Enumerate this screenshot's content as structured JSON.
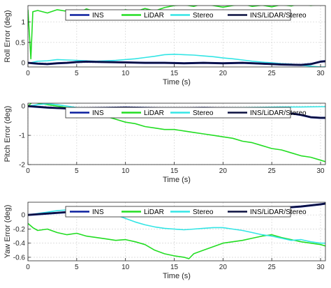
{
  "chart_data": [
    {
      "type": "line",
      "xlabel": "Time (s)",
      "ylabel": "Roll Error (deg)",
      "xlim": [
        0,
        30.5
      ],
      "ylim": [
        -0.1,
        1.4
      ],
      "xticks": [
        "0",
        "5",
        "10",
        "15",
        "20",
        "25",
        "30"
      ],
      "yticks": [
        "0",
        "0.5",
        "1"
      ],
      "grid": true,
      "legend": "top, horizontal",
      "series": [
        {
          "name": "INS",
          "color": "#0a1e9e",
          "x": [
            0,
            1,
            2,
            3,
            4,
            5,
            6,
            8,
            10,
            12,
            14,
            16,
            18,
            20,
            22,
            24,
            26,
            28,
            29,
            30,
            30.5
          ],
          "y": [
            0,
            -0.02,
            -0.03,
            -0.01,
            0,
            0.02,
            0.03,
            0.02,
            0.01,
            0,
            0,
            -0.01,
            0,
            -0.01,
            0,
            -0.02,
            -0.04,
            -0.05,
            -0.03,
            0.03,
            0.04
          ]
        },
        {
          "name": "LiDAR",
          "color": "#22dd22",
          "x": [
            0,
            0.3,
            0.5,
            1,
            2,
            3,
            4,
            5,
            6,
            7,
            8,
            9,
            10,
            11,
            12,
            13,
            14,
            15,
            16,
            17,
            18,
            19,
            20,
            21,
            22,
            23,
            24,
            25,
            26,
            27,
            28,
            29,
            30,
            30.5
          ],
          "y": [
            1.3,
            0.1,
            1.25,
            1.28,
            1.22,
            1.3,
            1.26,
            1.2,
            1.32,
            1.24,
            1.28,
            1.21,
            1.3,
            1.25,
            1.33,
            1.27,
            1.35,
            1.4,
            1.42,
            1.38,
            1.45,
            1.4,
            1.36,
            1.4,
            1.44,
            1.38,
            1.41,
            1.37,
            1.42,
            1.39,
            1.45,
            1.4,
            1.43,
            1.41
          ]
        },
        {
          "name": "Stereo",
          "color": "#33e5e5",
          "x": [
            0,
            1,
            2,
            3,
            4,
            5,
            6,
            7,
            8,
            9,
            10,
            11,
            12,
            13,
            14,
            15,
            16,
            17,
            18,
            19,
            20,
            21,
            22,
            23,
            24,
            25,
            26,
            27,
            28,
            29,
            30,
            30.5
          ],
          "y": [
            -0.01,
            0.04,
            0.05,
            0.08,
            0.07,
            0.06,
            0.05,
            0.04,
            0.05,
            0.06,
            0.08,
            0.1,
            0.13,
            0.16,
            0.2,
            0.21,
            0.2,
            0.19,
            0.17,
            0.15,
            0.12,
            0.1,
            0.07,
            0.04,
            0.02,
            0.0,
            -0.02,
            -0.03,
            -0.06,
            -0.08,
            -0.1,
            -0.1
          ]
        },
        {
          "name": "INS/LiDAR/Stereo",
          "color": "#0b1040",
          "x": [
            0,
            1,
            2,
            3,
            4,
            5,
            6,
            8,
            10,
            12,
            14,
            16,
            18,
            20,
            22,
            24,
            26,
            28,
            29,
            30,
            30.5
          ],
          "y": [
            0,
            -0.02,
            -0.03,
            -0.01,
            0,
            0.02,
            0.03,
            0.02,
            0.01,
            0,
            0,
            -0.01,
            0,
            -0.01,
            0,
            -0.02,
            -0.04,
            -0.05,
            -0.03,
            0.03,
            0.04
          ]
        }
      ]
    },
    {
      "type": "line",
      "xlabel": "Time (s)",
      "ylabel": "Pitch Error (deg)",
      "xlim": [
        0,
        30.5
      ],
      "ylim": [
        -2,
        0.1
      ],
      "xticks": [
        "0",
        "5",
        "10",
        "15",
        "20",
        "25",
        "30"
      ],
      "yticks": [
        "0",
        "-1",
        "-2"
      ],
      "grid": true,
      "legend": "top, horizontal",
      "series": [
        {
          "name": "INS",
          "color": "#0a1e9e",
          "x": [
            0,
            2,
            4,
            6,
            8,
            10,
            12,
            14,
            16,
            18,
            20,
            22,
            24,
            26,
            27,
            28,
            29,
            30,
            30.5
          ],
          "y": [
            0,
            -0.05,
            -0.08,
            -0.07,
            -0.06,
            -0.05,
            -0.06,
            -0.07,
            -0.07,
            -0.06,
            -0.07,
            -0.08,
            -0.1,
            -0.15,
            -0.25,
            -0.3,
            -0.38,
            -0.4,
            -0.4
          ]
        },
        {
          "name": "LiDAR",
          "color": "#22dd22",
          "x": [
            0,
            0.5,
            1,
            2,
            3,
            4,
            5,
            6,
            7,
            8,
            9,
            10,
            11,
            12,
            13,
            14,
            15,
            16,
            17,
            18,
            19,
            20,
            21,
            22,
            23,
            24,
            25,
            26,
            27,
            28,
            29,
            30,
            30.5
          ],
          "y": [
            0,
            0.15,
            0.1,
            0.05,
            0,
            -0.05,
            -0.1,
            -0.15,
            -0.25,
            -0.35,
            -0.45,
            -0.55,
            -0.6,
            -0.7,
            -0.75,
            -0.8,
            -0.8,
            -0.85,
            -0.9,
            -0.95,
            -1.0,
            -1.05,
            -1.1,
            -1.2,
            -1.25,
            -1.35,
            -1.45,
            -1.5,
            -1.6,
            -1.7,
            -1.75,
            -1.85,
            -1.9
          ]
        },
        {
          "name": "Stereo",
          "color": "#33e5e5",
          "x": [
            0,
            1,
            2,
            3,
            4,
            5,
            6,
            8,
            10,
            12,
            14,
            16,
            18,
            20,
            22,
            24,
            26,
            28,
            30,
            30.5
          ],
          "y": [
            0,
            0.05,
            0.08,
            0.05,
            0,
            -0.05,
            -0.06,
            -0.05,
            -0.04,
            -0.05,
            -0.06,
            -0.07,
            -0.06,
            -0.05,
            -0.05,
            -0.04,
            -0.03,
            -0.03,
            -0.02,
            -0.02
          ]
        },
        {
          "name": "INS/LiDAR/Stereo",
          "color": "#0b1040",
          "x": [
            0,
            2,
            4,
            6,
            8,
            10,
            12,
            14,
            16,
            18,
            20,
            22,
            24,
            26,
            27,
            28,
            29,
            30,
            30.5
          ],
          "y": [
            0,
            -0.05,
            -0.08,
            -0.07,
            -0.06,
            -0.05,
            -0.06,
            -0.07,
            -0.07,
            -0.06,
            -0.07,
            -0.08,
            -0.1,
            -0.15,
            -0.25,
            -0.3,
            -0.38,
            -0.4,
            -0.4
          ]
        }
      ]
    },
    {
      "type": "line",
      "xlabel": "Time (s)",
      "ylabel": "Yaw Error (deg)",
      "xlim": [
        0,
        30.5
      ],
      "ylim": [
        -0.65,
        0.18
      ],
      "xticks": [
        "0",
        "5",
        "10",
        "15",
        "20",
        "25",
        "30"
      ],
      "yticks": [
        "0",
        "-0.2",
        "-0.4",
        "-0.6"
      ],
      "grid": true,
      "legend": "top, horizontal",
      "series": [
        {
          "name": "INS",
          "color": "#0a1e9e",
          "x": [
            0,
            2,
            4,
            6,
            8,
            10,
            12,
            14,
            16,
            18,
            20,
            22,
            24,
            26,
            28,
            30,
            30.5
          ],
          "y": [
            0,
            0.02,
            0.04,
            0.06,
            0.07,
            0.08,
            0.08,
            0.07,
            0.06,
            0.06,
            0.06,
            0.07,
            0.08,
            0.1,
            0.12,
            0.15,
            0.16
          ]
        },
        {
          "name": "LiDAR",
          "color": "#22dd22",
          "x": [
            0,
            0.5,
            1,
            2,
            3,
            4,
            5,
            6,
            7,
            8,
            9,
            10,
            11,
            12,
            13,
            14,
            15,
            16,
            16.5,
            17,
            18,
            19,
            20,
            21,
            22,
            23,
            24,
            25,
            26,
            27,
            28,
            29,
            30,
            30.5
          ],
          "y": [
            -0.12,
            -0.18,
            -0.22,
            -0.2,
            -0.25,
            -0.28,
            -0.26,
            -0.3,
            -0.32,
            -0.34,
            -0.36,
            -0.35,
            -0.38,
            -0.42,
            -0.5,
            -0.55,
            -0.58,
            -0.6,
            -0.62,
            -0.55,
            -0.5,
            -0.45,
            -0.4,
            -0.38,
            -0.36,
            -0.33,
            -0.3,
            -0.28,
            -0.32,
            -0.35,
            -0.38,
            -0.4,
            -0.42,
            -0.44
          ]
        },
        {
          "name": "Stereo",
          "color": "#33e5e5",
          "x": [
            0,
            1,
            2,
            3,
            4,
            5,
            6,
            7,
            8,
            9,
            10,
            11,
            12,
            13,
            14,
            15,
            16,
            17,
            18,
            19,
            20,
            21,
            22,
            23,
            24,
            25,
            26,
            27,
            28,
            29,
            30,
            30.5
          ],
          "y": [
            0,
            0.02,
            0.04,
            0.06,
            0.07,
            0.06,
            0.05,
            0.05,
            0.04,
            0,
            -0.05,
            -0.1,
            -0.14,
            -0.17,
            -0.19,
            -0.2,
            -0.21,
            -0.2,
            -0.19,
            -0.18,
            -0.18,
            -0.2,
            -0.22,
            -0.25,
            -0.28,
            -0.3,
            -0.33,
            -0.36,
            -0.35,
            -0.38,
            -0.4,
            -0.4
          ]
        },
        {
          "name": "INS/LiDAR/Stereo",
          "color": "#0b1040",
          "x": [
            0,
            2,
            4,
            6,
            8,
            10,
            12,
            14,
            16,
            18,
            20,
            22,
            24,
            26,
            28,
            30,
            30.5
          ],
          "y": [
            0,
            0.02,
            0.04,
            0.06,
            0.07,
            0.08,
            0.08,
            0.07,
            0.06,
            0.06,
            0.06,
            0.07,
            0.08,
            0.1,
            0.12,
            0.15,
            0.16
          ]
        }
      ]
    }
  ]
}
